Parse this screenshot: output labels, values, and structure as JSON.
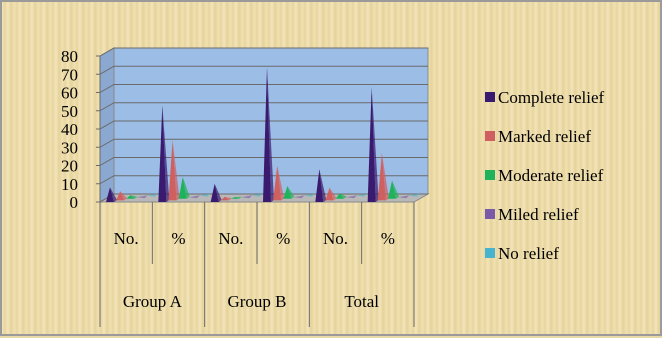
{
  "chart_data": {
    "type": "bar",
    "title": "",
    "xlabel": "",
    "ylabel": "",
    "ylim": [
      0,
      80
    ],
    "yticks": [
      0,
      10,
      20,
      30,
      40,
      50,
      60,
      70,
      80
    ],
    "categories": [
      "No.",
      "%",
      "No.",
      "%",
      "No.",
      "%"
    ],
    "groups": [
      "Group A",
      "Group B",
      "Total"
    ],
    "legend_position": "right",
    "grid": true,
    "series": [
      {
        "name": "Complete relief",
        "color": "#3a1a6e",
        "values": [
          8,
          53,
          10,
          74,
          18,
          63
        ]
      },
      {
        "name": "Marked relief",
        "color": "#d06060",
        "values": [
          5,
          33,
          2,
          19,
          7,
          26
        ]
      },
      {
        "name": "Moderate relief",
        "color": "#1fb25a",
        "values": [
          2,
          12,
          1,
          7,
          3,
          10
        ]
      },
      {
        "name": "Miled relief",
        "color": "#7a5aa8",
        "values": [
          0,
          0,
          0,
          0,
          0,
          0
        ]
      },
      {
        "name": "No relief",
        "color": "#46b4cf",
        "values": [
          0,
          0,
          0,
          0,
          0,
          0
        ]
      }
    ]
  }
}
